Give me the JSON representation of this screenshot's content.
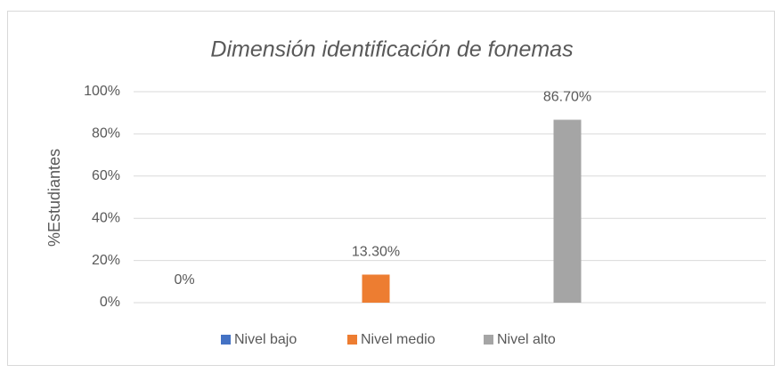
{
  "chart_data": {
    "type": "bar",
    "title": "Dimensión identificación de fonemas",
    "ylabel": "%Estudiantes",
    "categories": [
      null
    ],
    "series": [
      {
        "name": "Nivel bajo",
        "color": "#4472c4",
        "values": [
          0
        ],
        "value_labels": [
          "0%"
        ]
      },
      {
        "name": "Nivel medio",
        "color": "#ed7d31",
        "values": [
          13.3
        ],
        "value_labels": [
          "13.30%"
        ]
      },
      {
        "name": "Nivel alto",
        "color": "#a5a5a5",
        "values": [
          86.7
        ],
        "value_labels": [
          "86.70%"
        ]
      }
    ],
    "ylim": [
      0,
      100
    ],
    "yticks": [
      {
        "value": 0,
        "label": "0%"
      },
      {
        "value": 20,
        "label": "20%"
      },
      {
        "value": 40,
        "label": "40%"
      },
      {
        "value": 60,
        "label": "60%"
      },
      {
        "value": 80,
        "label": "80%"
      },
      {
        "value": 100,
        "label": "100%"
      }
    ],
    "grid": true,
    "legend": "bottom"
  }
}
